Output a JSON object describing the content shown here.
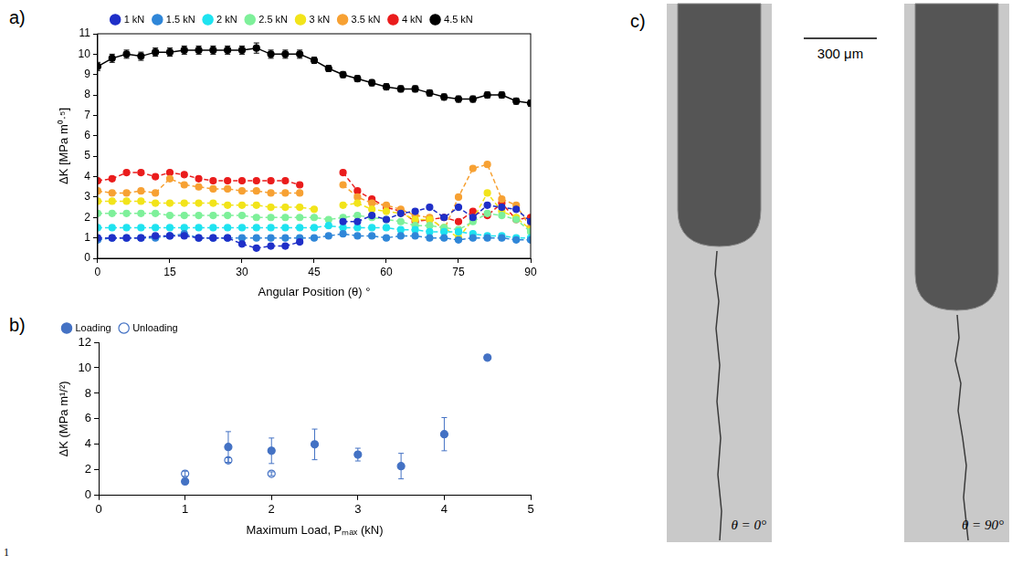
{
  "chart_data": [
    {
      "type": "line",
      "panel": "a)",
      "x_label": "Angular Position (θ) °",
      "y_label": "ΔK [MPa m⁰·⁵]",
      "xlim": [
        0,
        90
      ],
      "xticks": [
        0,
        15,
        30,
        45,
        60,
        75,
        90
      ],
      "ylim": [
        0,
        11
      ],
      "yticks": [
        0,
        1,
        2,
        3,
        4,
        5,
        6,
        7,
        8,
        9,
        10,
        11
      ],
      "grid": false,
      "legend": "top",
      "marker": "circle",
      "x": [
        0,
        3,
        6,
        9,
        12,
        15,
        18,
        21,
        24,
        27,
        30,
        33,
        36,
        39,
        42,
        45,
        48,
        51,
        54,
        57,
        60,
        63,
        66,
        69,
        72,
        75,
        78,
        81,
        84,
        87,
        90
      ],
      "series": [
        {
          "name": "1 kN",
          "color": "#1f2fc8",
          "line_style": "dashed",
          "values": [
            1.0,
            1.0,
            1.0,
            1.0,
            1.1,
            1.1,
            1.1,
            1.0,
            1.0,
            1.0,
            0.7,
            0.5,
            0.6,
            0.6,
            0.8,
            null,
            null,
            1.8,
            1.8,
            2.1,
            1.9,
            2.2,
            2.3,
            2.5,
            2.0,
            2.5,
            2.0,
            2.6,
            2.5,
            2.4,
            1.8
          ]
        },
        {
          "name": "1.5 kN",
          "color": "#2f86d8",
          "line_style": "dashed",
          "values": [
            0.9,
            1.0,
            1.0,
            1.0,
            1.0,
            1.1,
            1.2,
            1.0,
            1.0,
            1.0,
            1.0,
            1.0,
            1.0,
            1.0,
            1.0,
            1.0,
            1.1,
            1.2,
            1.1,
            1.1,
            1.0,
            1.1,
            1.1,
            1.0,
            1.0,
            0.9,
            1.0,
            1.0,
            1.0,
            0.9,
            0.9
          ]
        },
        {
          "name": "2 kN",
          "color": "#1ee3f0",
          "line_style": "dashed",
          "values": [
            1.5,
            1.5,
            1.5,
            1.5,
            1.5,
            1.5,
            1.5,
            1.5,
            1.5,
            1.5,
            1.5,
            1.5,
            1.5,
            1.5,
            1.5,
            1.5,
            1.6,
            1.5,
            1.5,
            1.5,
            1.5,
            1.4,
            1.4,
            1.3,
            1.3,
            1.3,
            1.2,
            1.1,
            1.1,
            1.0,
            1.0
          ]
        },
        {
          "name": "2.5 kN",
          "color": "#7ef09a",
          "line_style": "dashed",
          "values": [
            2.2,
            2.2,
            2.2,
            2.2,
            2.2,
            2.1,
            2.1,
            2.1,
            2.1,
            2.1,
            2.1,
            2.0,
            2.0,
            2.0,
            2.0,
            2.0,
            1.9,
            2.0,
            2.1,
            2.0,
            1.9,
            1.8,
            1.6,
            1.6,
            1.5,
            1.4,
            1.8,
            2.2,
            2.1,
            1.9,
            1.3
          ]
        },
        {
          "name": "3 kN",
          "color": "#f2e41a",
          "line_style": "dashed",
          "values": [
            2.8,
            2.8,
            2.8,
            2.8,
            2.7,
            2.7,
            2.7,
            2.7,
            2.7,
            2.6,
            2.6,
            2.6,
            2.5,
            2.5,
            2.5,
            2.4,
            null,
            2.6,
            2.7,
            2.4,
            2.3,
            2.2,
            1.9,
            1.9,
            1.5,
            1.0,
            1.9,
            3.2,
            2.3,
            2.0,
            1.4
          ]
        },
        {
          "name": "3.5 kN",
          "color": "#f7a133",
          "line_style": "dashed",
          "values": [
            3.3,
            3.2,
            3.2,
            3.3,
            3.2,
            3.9,
            3.6,
            3.5,
            3.4,
            3.4,
            3.3,
            3.3,
            3.2,
            3.2,
            3.2,
            null,
            null,
            3.6,
            3.0,
            2.7,
            2.6,
            2.4,
            2.1,
            2.0,
            1.4,
            3.0,
            4.4,
            4.6,
            2.9,
            2.6,
            1.5
          ]
        },
        {
          "name": "4 kN",
          "color": "#ea1c1c",
          "line_style": "dashed",
          "values": [
            3.8,
            3.9,
            4.2,
            4.2,
            4.0,
            4.2,
            4.1,
            3.9,
            3.8,
            3.8,
            3.8,
            3.8,
            3.8,
            3.8,
            3.6,
            null,
            null,
            4.2,
            3.3,
            2.9,
            2.5,
            2.3,
            1.8,
            1.9,
            2.0,
            1.8,
            2.3,
            2.1,
            2.7,
            1.9,
            2.0
          ]
        },
        {
          "name": "4.5 kN",
          "color": "#000000",
          "line_style": "solid",
          "values": [
            9.4,
            9.8,
            10.0,
            9.9,
            10.1,
            10.1,
            10.2,
            10.2,
            10.2,
            10.2,
            10.2,
            10.3,
            10.0,
            10.0,
            10.0,
            9.7,
            9.3,
            9.0,
            8.8,
            8.6,
            8.4,
            8.3,
            8.3,
            8.1,
            7.9,
            7.8,
            7.8,
            8.0,
            8.0,
            7.7,
            7.6
          ],
          "errors": [
            0.2,
            0.2,
            0.2,
            0.2,
            0.2,
            0.2,
            0.2,
            0.2,
            0.2,
            0.2,
            0.2,
            0.25,
            0.2,
            0.2,
            0.2,
            0.15,
            0.15,
            0.15,
            0.15,
            0.15,
            0.15,
            0.15,
            0.15,
            0.15,
            0.15,
            0.15,
            0.15,
            0.15,
            0.15,
            0.15,
            0.15
          ]
        }
      ]
    },
    {
      "type": "scatter",
      "panel": "b)",
      "x_label": "Maximum Load, Pₘₐₓ (kN)",
      "y_label": "ΔK (MPa m¹/²)",
      "xlim": [
        0,
        5
      ],
      "xticks": [
        0,
        1,
        2,
        3,
        4,
        5
      ],
      "ylim": [
        0,
        12
      ],
      "yticks": [
        0,
        2,
        4,
        6,
        8,
        10,
        12
      ],
      "grid": false,
      "legend": "top left",
      "series": [
        {
          "name": "Loading",
          "color": "#4472c4",
          "marker": "circle",
          "x": [
            1,
            1.5,
            2,
            2.5,
            3,
            3.5,
            4,
            4.5
          ],
          "values": [
            1.1,
            3.8,
            3.5,
            4.0,
            3.2,
            2.3,
            4.8,
            10.8
          ],
          "errors": [
            0.1,
            1.2,
            1.0,
            1.2,
            0.5,
            1.0,
            1.3,
            0.2
          ]
        },
        {
          "name": "Unloading",
          "color": "#4472c4",
          "marker": "open_circle",
          "x": [
            1,
            1.5,
            2
          ],
          "values": [
            1.7,
            2.75,
            1.7
          ],
          "errors": [
            0.2,
            0.2,
            0.15
          ]
        }
      ]
    }
  ],
  "image_panel": {
    "panel": "c)",
    "scale_bar": "300 μm",
    "images": [
      {
        "label": "θ = 0°"
      },
      {
        "label": "θ = 90°"
      }
    ]
  },
  "line_number": "1"
}
